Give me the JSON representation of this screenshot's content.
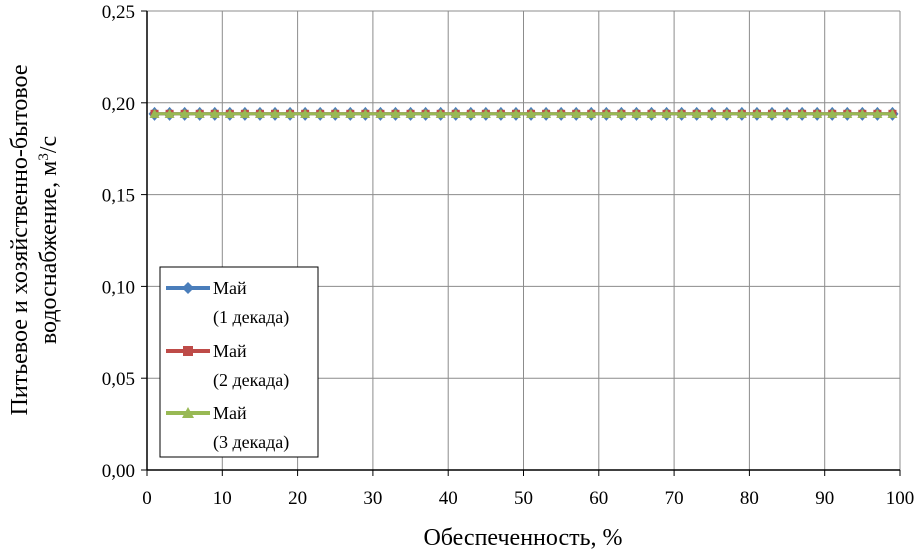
{
  "chart_data": {
    "type": "line",
    "xlabel": "Обеспеченность, %",
    "ylabel_line1": "Питьевое и хозяйственно-бытовое",
    "ylabel_line2_prefix": "водоснабжение, м",
    "ylabel_line2_sup": "3",
    "ylabel_line2_suffix": "/с",
    "xlim": [
      0,
      100
    ],
    "ylim": [
      0,
      0.25
    ],
    "x_ticks": [
      "0",
      "10",
      "20",
      "30",
      "40",
      "50",
      "60",
      "70",
      "80",
      "90",
      "100"
    ],
    "y_ticks": [
      "0,00",
      "0,05",
      "0,10",
      "0,15",
      "0,20",
      "0,25"
    ],
    "grid": true,
    "legend_position": "left-middle",
    "x": [
      1,
      3,
      5,
      7,
      9,
      11,
      13,
      15,
      17,
      19,
      21,
      23,
      25,
      27,
      29,
      31,
      33,
      35,
      37,
      39,
      41,
      43,
      45,
      47,
      49,
      51,
      53,
      55,
      57,
      59,
      61,
      63,
      65,
      67,
      69,
      71,
      73,
      75,
      77,
      79,
      81,
      83,
      85,
      87,
      89,
      91,
      93,
      95,
      97,
      99
    ],
    "series": [
      {
        "name_line1": "Май",
        "name_line2": "(1 декада)",
        "color": "#4a7ebb",
        "marker": "diamond",
        "value": 0.194
      },
      {
        "name_line1": "Май",
        "name_line2": "(2 декада)",
        "color": "#be4b48",
        "marker": "square",
        "value": 0.194
      },
      {
        "name_line1": "Май",
        "name_line2": "(3 декада)",
        "color": "#98b954",
        "marker": "triangle",
        "value": 0.194
      }
    ]
  }
}
